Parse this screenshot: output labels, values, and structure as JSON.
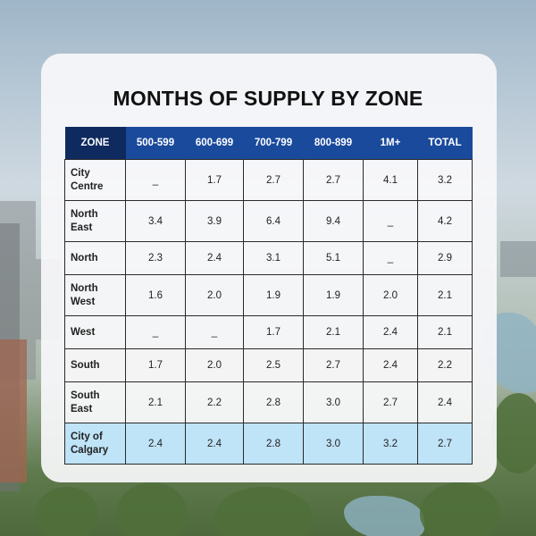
{
  "title": "MONTHS OF SUPPLY BY ZONE",
  "colors": {
    "header_blue": "#1a4a9c",
    "zone_header": "#0f2a5f",
    "total_row": "#bfe3f7",
    "card": "#f7f8fa"
  },
  "chart_data": {
    "type": "table",
    "title": "MONTHS OF SUPPLY BY ZONE",
    "columns": [
      "ZONE",
      "500-599",
      "600-699",
      "700-799",
      "800-899",
      "1M+",
      "TOTAL"
    ],
    "rows": [
      {
        "zone": "City Centre",
        "values": [
          "_",
          "1.7",
          "2.7",
          "2.7",
          "4.1",
          "3.2"
        ]
      },
      {
        "zone": "North East",
        "values": [
          "3.4",
          "3.9",
          "6.4",
          "9.4",
          "_",
          "4.2"
        ]
      },
      {
        "zone": "North",
        "values": [
          "2.3",
          "2.4",
          "3.1",
          "5.1",
          "_",
          "2.9"
        ]
      },
      {
        "zone": "North West",
        "values": [
          "1.6",
          "2.0",
          "1.9",
          "1.9",
          "2.0",
          "2.1"
        ]
      },
      {
        "zone": "West",
        "values": [
          "_",
          "_",
          "1.7",
          "2.1",
          "2.4",
          "2.1"
        ]
      },
      {
        "zone": "South",
        "values": [
          "1.7",
          "2.0",
          "2.5",
          "2.7",
          "2.4",
          "2.2"
        ]
      },
      {
        "zone": "South East",
        "values": [
          "2.1",
          "2.2",
          "2.8",
          "3.0",
          "2.7",
          "2.4"
        ]
      },
      {
        "zone": "City of Calgary",
        "values": [
          "2.4",
          "2.4",
          "2.8",
          "3.0",
          "3.2",
          "2.7"
        ]
      }
    ]
  }
}
